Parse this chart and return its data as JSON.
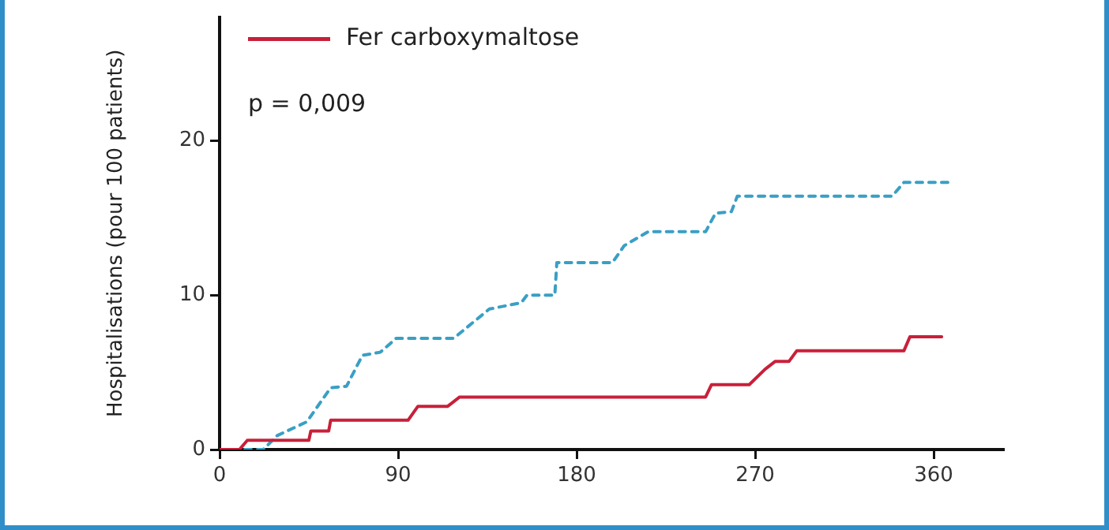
{
  "chart_data": {
    "type": "line",
    "ylabel": "Hospitalisations (pour 100 patients)",
    "annotations": [
      "p = 0,009"
    ],
    "xlim": [
      0,
      395
    ],
    "xticks": [
      0,
      90,
      180,
      270,
      360
    ],
    "ylim": [
      0,
      28
    ],
    "yticks": [
      0,
      10,
      20
    ],
    "grid": false,
    "legend": "top left",
    "marker": "none",
    "series": [
      {
        "name": "Fer carboxymaltose",
        "color": "#c8203a",
        "line_style": "solid",
        "x": [
          0,
          10,
          14,
          45,
          46,
          55,
          56,
          95,
          100,
          115,
          121,
          245,
          248,
          267,
          275,
          280,
          287,
          291,
          345,
          348,
          364
        ],
        "values": [
          0,
          0,
          0.6,
          0.6,
          1.2,
          1.2,
          1.9,
          1.9,
          2.8,
          2.8,
          3.4,
          3.4,
          4.2,
          4.2,
          5.2,
          5.7,
          5.7,
          6.4,
          6.4,
          7.3,
          7.3
        ]
      },
      {
        "color": "#3a9fc4",
        "line_style": "dashed",
        "x": [
          0,
          8,
          15,
          22,
          29,
          44,
          56,
          64,
          72,
          81,
          89,
          118,
          136,
          152,
          155,
          169,
          170,
          198,
          204,
          216,
          245,
          250,
          258,
          261,
          339,
          345,
          368
        ],
        "values": [
          0,
          0,
          0,
          0,
          0.9,
          1.8,
          4,
          4.1,
          6.1,
          6.3,
          7.2,
          7.2,
          9.1,
          9.5,
          10,
          10,
          12.1,
          12.1,
          13.2,
          14.1,
          14.1,
          15.3,
          15.4,
          16.4,
          16.4,
          17.3,
          17.3
        ]
      }
    ]
  }
}
